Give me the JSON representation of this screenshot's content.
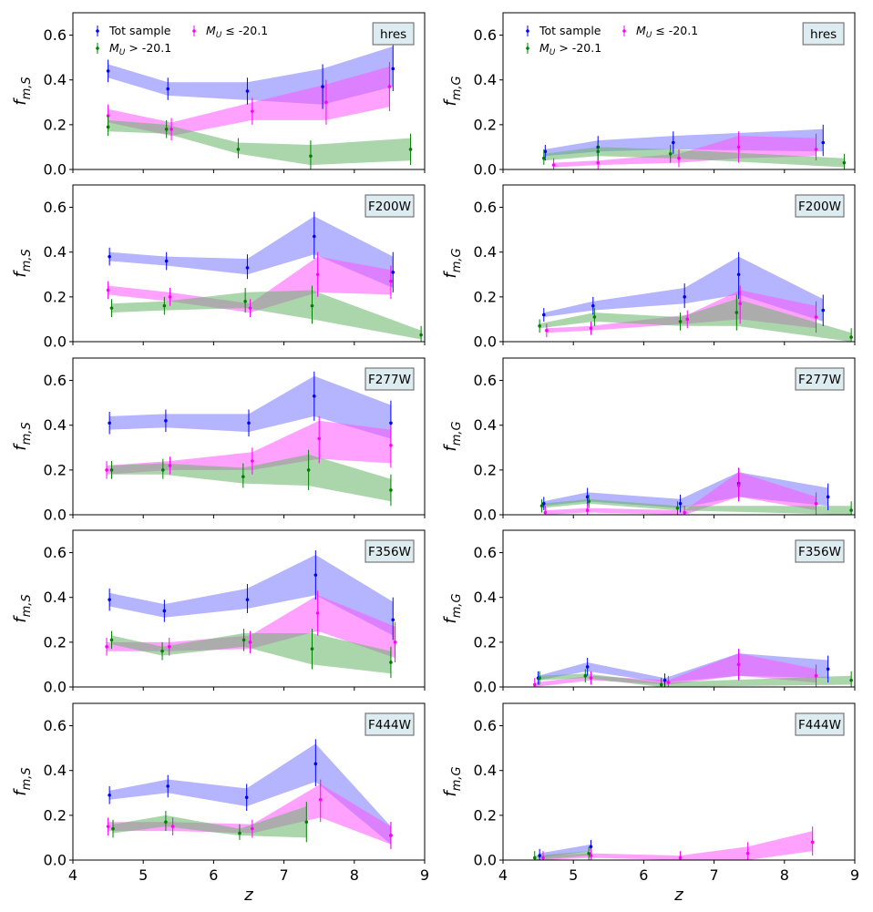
{
  "figure": {
    "columns": [
      "f_{m,S}",
      "f_{m,G}"
    ],
    "xlabel": "z",
    "xlim": [
      4,
      9
    ],
    "ylim": [
      0,
      0.7
    ],
    "xticks": [
      "4",
      "5",
      "6",
      "7",
      "8",
      "9"
    ],
    "yticks": [
      "0.0",
      "0.2",
      "0.4",
      "0.6"
    ],
    "legend_labels": [
      "Tot sample",
      "M_U > -20.1",
      "M_U ≤ -20.1"
    ],
    "colors": {
      "tot": "#0000ff",
      "faint": "#008000",
      "bright": "#ff00ff"
    }
  },
  "chart_data": [
    {
      "type": "line",
      "title": "hres",
      "column": "left",
      "ylabel": "f_{m,S}",
      "legend": "top-left",
      "series": [
        {
          "name": "Tot sample",
          "color": "blue",
          "x": [
            4.5,
            5.35,
            6.48,
            7.55,
            8.55
          ],
          "y": [
            0.44,
            0.36,
            0.35,
            0.37,
            0.45
          ],
          "lo": [
            0.41,
            0.33,
            0.31,
            0.29,
            0.37
          ],
          "hi": [
            0.47,
            0.39,
            0.39,
            0.45,
            0.55
          ]
        },
        {
          "name": "M_U ≤ -20.1",
          "color": "magenta",
          "x": [
            4.5,
            5.4,
            6.55,
            7.6,
            8.5
          ],
          "y": [
            0.24,
            0.18,
            0.26,
            0.3,
            0.37
          ],
          "lo": [
            0.21,
            0.15,
            0.22,
            0.22,
            0.28
          ],
          "hi": [
            0.27,
            0.21,
            0.3,
            0.38,
            0.46
          ]
        },
        {
          "name": "M_U > -20.1",
          "color": "green",
          "x": [
            4.5,
            5.33,
            6.35,
            7.38,
            8.8
          ],
          "y": [
            0.19,
            0.18,
            0.09,
            0.06,
            0.09
          ],
          "lo": [
            0.17,
            0.16,
            0.07,
            0.02,
            0.04
          ],
          "hi": [
            0.22,
            0.2,
            0.12,
            0.11,
            0.14
          ]
        }
      ]
    },
    {
      "type": "line",
      "title": "hres",
      "column": "right",
      "ylabel": "f_{m,G}",
      "legend": "top-left",
      "series": [
        {
          "name": "Tot sample",
          "color": "blue",
          "x": [
            4.6,
            5.35,
            6.42,
            8.55
          ],
          "y": [
            0.08,
            0.1,
            0.12,
            0.12
          ],
          "lo": [
            0.06,
            0.08,
            0.09,
            0.08
          ],
          "hi": [
            0.09,
            0.13,
            0.15,
            0.18
          ]
        },
        {
          "name": "M_U ≤ -20.1",
          "color": "magenta",
          "x": [
            4.72,
            5.35,
            6.5,
            7.35,
            8.45
          ],
          "y": [
            0.02,
            0.03,
            0.05,
            0.1,
            0.09
          ],
          "lo": [
            0.01,
            0.02,
            0.03,
            0.05,
            0.06
          ],
          "hi": [
            0.03,
            0.04,
            0.07,
            0.15,
            0.14
          ]
        },
        {
          "name": "M_U > -20.1",
          "color": "green",
          "x": [
            4.58,
            5.35,
            6.38,
            8.85
          ],
          "y": [
            0.05,
            0.08,
            0.07,
            0.03
          ],
          "lo": [
            0.04,
            0.06,
            0.05,
            0.01
          ],
          "hi": [
            0.07,
            0.1,
            0.09,
            0.05
          ]
        }
      ]
    },
    {
      "type": "line",
      "title": "F200W",
      "column": "left",
      "ylabel": "f_{m,S}",
      "legend": "none",
      "series": [
        {
          "name": "Tot sample",
          "color": "blue",
          "x": [
            4.52,
            5.33,
            6.48,
            7.43,
            8.55
          ],
          "y": [
            0.38,
            0.36,
            0.33,
            0.47,
            0.31
          ],
          "lo": [
            0.36,
            0.34,
            0.3,
            0.39,
            0.24
          ],
          "hi": [
            0.4,
            0.38,
            0.37,
            0.56,
            0.38
          ]
        },
        {
          "name": "M_U ≤ -20.1",
          "color": "magenta",
          "x": [
            4.5,
            5.38,
            6.52,
            7.48,
            8.52
          ],
          "y": [
            0.23,
            0.2,
            0.15,
            0.3,
            0.27
          ],
          "lo": [
            0.21,
            0.18,
            0.13,
            0.22,
            0.21
          ],
          "hi": [
            0.25,
            0.22,
            0.17,
            0.38,
            0.32
          ]
        },
        {
          "name": "M_U > -20.1",
          "color": "green",
          "x": [
            4.55,
            5.3,
            6.45,
            7.4,
            8.95
          ],
          "y": [
            0.15,
            0.16,
            0.18,
            0.16,
            0.03
          ],
          "lo": [
            0.13,
            0.14,
            0.15,
            0.1,
            0.01
          ],
          "hi": [
            0.17,
            0.18,
            0.22,
            0.23,
            0.05
          ]
        }
      ]
    },
    {
      "type": "line",
      "title": "F200W",
      "column": "right",
      "ylabel": "f_{m,G}",
      "legend": "none",
      "series": [
        {
          "name": "Tot sample",
          "color": "blue",
          "x": [
            4.58,
            5.28,
            6.58,
            7.35,
            8.55
          ],
          "y": [
            0.12,
            0.16,
            0.2,
            0.3,
            0.14
          ],
          "lo": [
            0.11,
            0.14,
            0.17,
            0.21,
            0.09
          ],
          "hi": [
            0.13,
            0.18,
            0.24,
            0.38,
            0.19
          ]
        },
        {
          "name": "M_U ≤ -20.1",
          "color": "magenta",
          "x": [
            4.62,
            5.25,
            6.62,
            7.37,
            8.45
          ],
          "y": [
            0.05,
            0.06,
            0.1,
            0.17,
            0.11
          ],
          "lo": [
            0.04,
            0.05,
            0.08,
            0.1,
            0.06
          ],
          "hi": [
            0.06,
            0.07,
            0.12,
            0.23,
            0.16
          ]
        },
        {
          "name": "M_U > -20.1",
          "color": "green",
          "x": [
            4.52,
            5.3,
            6.52,
            7.32,
            8.95
          ],
          "y": [
            0.07,
            0.11,
            0.09,
            0.13,
            0.02
          ],
          "lo": [
            0.06,
            0.09,
            0.07,
            0.07,
            0.0
          ],
          "hi": [
            0.08,
            0.13,
            0.11,
            0.19,
            0.04
          ]
        }
      ]
    },
    {
      "type": "line",
      "title": "F277W",
      "column": "left",
      "ylabel": "f_{m,S}",
      "legend": "none",
      "series": [
        {
          "name": "Tot sample",
          "color": "blue",
          "x": [
            4.52,
            5.32,
            6.5,
            7.43,
            8.52
          ],
          "y": [
            0.41,
            0.42,
            0.41,
            0.53,
            0.41
          ],
          "lo": [
            0.38,
            0.39,
            0.37,
            0.44,
            0.34
          ],
          "hi": [
            0.44,
            0.45,
            0.45,
            0.62,
            0.49
          ]
        },
        {
          "name": "M_U ≤ -20.1",
          "color": "magenta",
          "x": [
            4.48,
            5.38,
            6.55,
            7.5,
            8.52
          ],
          "y": [
            0.2,
            0.22,
            0.24,
            0.34,
            0.31
          ],
          "lo": [
            0.18,
            0.2,
            0.2,
            0.25,
            0.23
          ],
          "hi": [
            0.22,
            0.24,
            0.28,
            0.42,
            0.38
          ]
        },
        {
          "name": "M_U > -20.1",
          "color": "green",
          "x": [
            4.55,
            5.28,
            6.42,
            7.35,
            8.52
          ],
          "y": [
            0.2,
            0.2,
            0.17,
            0.2,
            0.11
          ],
          "lo": [
            0.18,
            0.18,
            0.14,
            0.13,
            0.06
          ],
          "hi": [
            0.22,
            0.23,
            0.21,
            0.27,
            0.16
          ]
        }
      ]
    },
    {
      "type": "line",
      "title": "F277W",
      "column": "right",
      "ylabel": "f_{m,G}",
      "legend": "none",
      "series": [
        {
          "name": "Tot sample",
          "color": "blue",
          "x": [
            4.58,
            5.2,
            6.52,
            7.35,
            8.62
          ],
          "y": [
            0.05,
            0.08,
            0.05,
            0.14,
            0.08
          ],
          "lo": [
            0.04,
            0.06,
            0.03,
            0.08,
            0.04
          ],
          "hi": [
            0.06,
            0.1,
            0.07,
            0.19,
            0.12
          ]
        },
        {
          "name": "M_U ≤ -20.1",
          "color": "magenta",
          "x": [
            4.6,
            5.2,
            6.58,
            7.35,
            8.45
          ],
          "y": [
            0.01,
            0.02,
            0.01,
            0.13,
            0.05
          ],
          "lo": [
            0.0,
            0.01,
            0.0,
            0.08,
            0.02
          ],
          "hi": [
            0.02,
            0.03,
            0.02,
            0.19,
            0.08
          ]
        },
        {
          "name": "M_U > -20.1",
          "color": "green",
          "x": [
            4.55,
            5.22,
            6.48,
            8.95
          ],
          "y": [
            0.04,
            0.06,
            0.03,
            0.02
          ],
          "lo": [
            0.03,
            0.05,
            0.02,
            0.0
          ],
          "hi": [
            0.05,
            0.07,
            0.04,
            0.04
          ]
        }
      ]
    },
    {
      "type": "line",
      "title": "F356W",
      "column": "left",
      "ylabel": "f_{m,S}",
      "legend": "none",
      "series": [
        {
          "name": "Tot sample",
          "color": "blue",
          "x": [
            4.52,
            5.3,
            6.48,
            7.45,
            8.55
          ],
          "y": [
            0.39,
            0.34,
            0.39,
            0.5,
            0.3
          ],
          "lo": [
            0.36,
            0.31,
            0.35,
            0.41,
            0.23
          ],
          "hi": [
            0.42,
            0.37,
            0.44,
            0.59,
            0.38
          ]
        },
        {
          "name": "M_U ≤ -20.1",
          "color": "magenta",
          "x": [
            4.48,
            5.37,
            6.52,
            7.48,
            8.58
          ],
          "y": [
            0.18,
            0.18,
            0.2,
            0.33,
            0.2
          ],
          "lo": [
            0.16,
            0.16,
            0.17,
            0.25,
            0.13
          ],
          "hi": [
            0.2,
            0.2,
            0.23,
            0.41,
            0.27
          ]
        },
        {
          "name": "M_U > -20.1",
          "color": "green",
          "x": [
            4.55,
            5.27,
            6.43,
            7.4,
            8.52
          ],
          "y": [
            0.21,
            0.16,
            0.21,
            0.17,
            0.11
          ],
          "lo": [
            0.19,
            0.14,
            0.18,
            0.1,
            0.06
          ],
          "hi": [
            0.23,
            0.18,
            0.24,
            0.24,
            0.16
          ]
        }
      ]
    },
    {
      "type": "line",
      "title": "F356W",
      "column": "right",
      "ylabel": "f_{m,G}",
      "legend": "none",
      "series": [
        {
          "name": "Tot sample",
          "color": "blue",
          "x": [
            4.5,
            5.2,
            6.3,
            7.35,
            8.62
          ],
          "y": [
            0.04,
            0.09,
            0.03,
            0.1,
            0.08
          ],
          "lo": [
            0.03,
            0.07,
            0.02,
            0.05,
            0.04
          ],
          "hi": [
            0.05,
            0.11,
            0.04,
            0.15,
            0.12
          ]
        },
        {
          "name": "M_U ≤ -20.1",
          "color": "magenta",
          "x": [
            4.45,
            5.25,
            6.35,
            7.35,
            8.45
          ],
          "y": [
            0.01,
            0.04,
            0.02,
            0.1,
            0.05
          ],
          "lo": [
            0.0,
            0.03,
            0.01,
            0.05,
            0.02
          ],
          "hi": [
            0.02,
            0.05,
            0.03,
            0.15,
            0.08
          ]
        },
        {
          "name": "M_U > -20.1",
          "color": "green",
          "x": [
            4.52,
            5.17,
            6.25,
            8.95
          ],
          "y": [
            0.04,
            0.05,
            0.01,
            0.03
          ],
          "lo": [
            0.03,
            0.04,
            0.0,
            0.01
          ],
          "hi": [
            0.05,
            0.06,
            0.02,
            0.05
          ]
        }
      ]
    },
    {
      "type": "line",
      "title": "F444W",
      "column": "left",
      "ylabel": "f_{m,S}",
      "legend": "none",
      "series": [
        {
          "name": "Tot sample",
          "color": "blue",
          "x": [
            4.52,
            5.35,
            6.47,
            7.45,
            8.52
          ],
          "y": [
            0.29,
            0.33,
            0.28,
            0.43,
            0.11
          ],
          "lo": [
            0.27,
            0.3,
            0.24,
            0.35,
            0.07
          ],
          "hi": [
            0.31,
            0.36,
            0.32,
            0.52,
            0.15
          ]
        },
        {
          "name": "M_U ≤ -20.1",
          "color": "magenta",
          "x": [
            4.5,
            5.42,
            6.55,
            7.52,
            8.52
          ],
          "y": [
            0.15,
            0.15,
            0.14,
            0.27,
            0.11
          ],
          "lo": [
            0.13,
            0.13,
            0.12,
            0.19,
            0.07
          ],
          "hi": [
            0.17,
            0.17,
            0.16,
            0.34,
            0.15
          ]
        },
        {
          "name": "M_U > -20.1",
          "color": "green",
          "x": [
            4.57,
            5.32,
            6.37,
            7.32
          ],
          "y": [
            0.14,
            0.17,
            0.12,
            0.17
          ],
          "lo": [
            0.12,
            0.15,
            0.11,
            0.1
          ],
          "hi": [
            0.16,
            0.2,
            0.14,
            0.24
          ]
        }
      ]
    },
    {
      "type": "line",
      "title": "F444W",
      "column": "right",
      "ylabel": "f_{m,G}",
      "legend": "none",
      "series": [
        {
          "name": "Tot sample",
          "color": "blue",
          "x": [
            4.52,
            5.25
          ],
          "y": [
            0.02,
            0.06
          ],
          "lo": [
            0.01,
            0.04
          ],
          "hi": [
            0.03,
            0.07
          ]
        },
        {
          "name": "M_U ≤ -20.1",
          "color": "magenta",
          "x": [
            4.57,
            5.25,
            6.52,
            7.48,
            8.4
          ],
          "y": [
            0.01,
            0.02,
            0.01,
            0.03,
            0.08
          ],
          "lo": [
            0.0,
            0.01,
            0.0,
            0.0,
            0.04
          ],
          "hi": [
            0.02,
            0.03,
            0.02,
            0.06,
            0.13
          ]
        },
        {
          "name": "M_U > -20.1",
          "color": "green",
          "x": [
            4.45,
            5.22
          ],
          "y": [
            0.01,
            0.03
          ],
          "lo": [
            0.0,
            0.02
          ],
          "hi": [
            0.02,
            0.04
          ]
        }
      ]
    }
  ]
}
